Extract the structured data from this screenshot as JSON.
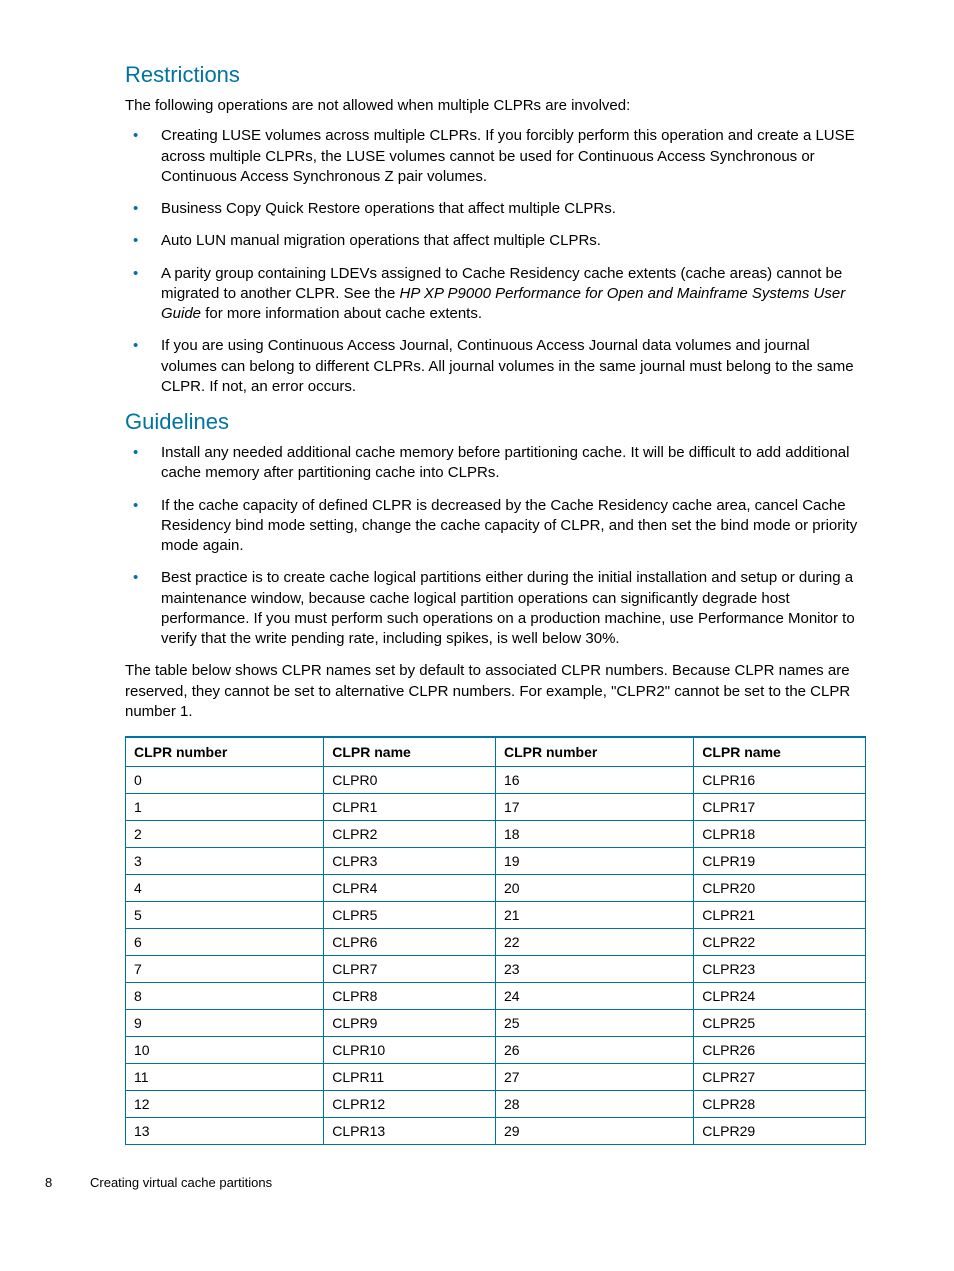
{
  "restrictions": {
    "heading": "Restrictions",
    "intro": "The following operations are not allowed when multiple CLPRs are involved:",
    "items": [
      "Creating LUSE volumes across multiple CLPRs. If you forcibly perform this operation and create a LUSE across multiple CLPRs, the LUSE volumes cannot be used for Continuous Access Synchronous or Continuous Access Synchronous Z pair volumes.",
      "Business Copy Quick Restore operations that affect multiple CLPRs.",
      "Auto LUN manual migration operations that affect multiple CLPRs.",
      "",
      "If you are using Continuous Access Journal, Continuous Access Journal data volumes and journal volumes can belong to different CLPRs. All journal volumes in the same journal must belong to the same CLPR. If not, an error occurs."
    ],
    "item4_pre": "A parity group containing LDEVs assigned to Cache Residency cache extents (cache areas) cannot be migrated to another CLPR. See the ",
    "item4_italic": "HP XP P9000 Performance for Open and Mainframe Systems User Guide",
    "item4_post": " for more information about cache extents."
  },
  "guidelines": {
    "heading": "Guidelines",
    "items": [
      "Install any needed additional cache memory before partitioning cache. It will be difficult to add additional cache memory after partitioning cache into CLPRs.",
      "If the cache capacity of defined CLPR is decreased by the Cache Residency cache area, cancel Cache Residency bind mode setting, change the cache capacity of CLPR, and then set the bind mode or priority mode again.",
      "Best practice is to create cache logical partitions either during the initial installation and setup or during a maintenance window, because cache logical partition operations can significantly degrade host performance. If you must perform such operations on a production machine, use Performance Monitor to verify that the write pending rate, including spikes, is well below 30%."
    ],
    "table_intro": "The table below shows CLPR names set by default to associated CLPR numbers. Because CLPR names are reserved, they cannot be set to alternative CLPR numbers. For example, \"CLPR2\" cannot be set to the CLPR number 1."
  },
  "table": {
    "headers": [
      "CLPR number",
      "CLPR name",
      "CLPR number",
      "CLPR name"
    ],
    "rows": [
      [
        "0",
        "CLPR0",
        "16",
        "CLPR16"
      ],
      [
        "1",
        "CLPR1",
        "17",
        "CLPR17"
      ],
      [
        "2",
        "CLPR2",
        "18",
        "CLPR18"
      ],
      [
        "3",
        "CLPR3",
        "19",
        "CLPR19"
      ],
      [
        "4",
        "CLPR4",
        "20",
        "CLPR20"
      ],
      [
        "5",
        "CLPR5",
        "21",
        "CLPR21"
      ],
      [
        "6",
        "CLPR6",
        "22",
        "CLPR22"
      ],
      [
        "7",
        "CLPR7",
        "23",
        "CLPR23"
      ],
      [
        "8",
        "CLPR8",
        "24",
        "CLPR24"
      ],
      [
        "9",
        "CLPR9",
        "25",
        "CLPR25"
      ],
      [
        "10",
        "CLPR10",
        "26",
        "CLPR26"
      ],
      [
        "11",
        "CLPR11",
        "27",
        "CLPR27"
      ],
      [
        "12",
        "CLPR12",
        "28",
        "CLPR28"
      ],
      [
        "13",
        "CLPR13",
        "29",
        "CLPR29"
      ]
    ]
  },
  "footer": {
    "page_number": "8",
    "page_title": "Creating virtual cache partitions"
  }
}
